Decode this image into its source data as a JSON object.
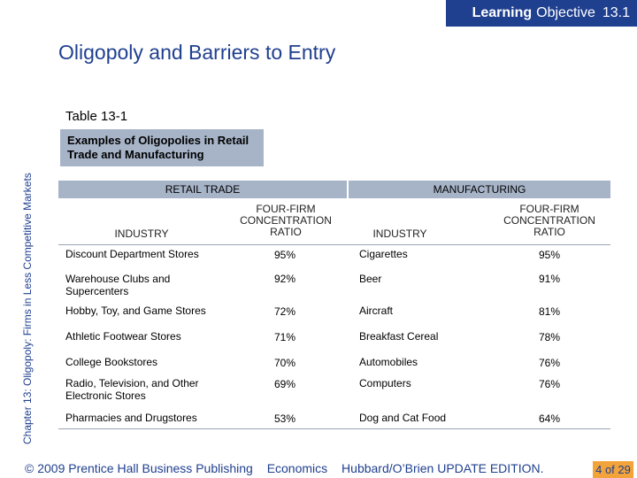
{
  "header": {
    "badge_bold": "Learning",
    "badge_rest": "Objective",
    "badge_num": "13.1"
  },
  "title": "Oligopoly and Barriers to Entry",
  "side_label": "Chapter 13: Oligopoly: Firms in Less Competitive Markets",
  "table": {
    "label": "Table 13-1",
    "caption": "Examples of Oligopolies in Retail Trade and Manufacturing",
    "sections": {
      "retail": "RETAIL TRADE",
      "manufacturing": "MANUFACTURING"
    },
    "col_headers": {
      "industry": "INDUSTRY",
      "ratio": "FOUR-FIRM CONCENTRATION RATIO"
    },
    "rows": [
      {
        "retail": "Discount Department Stores",
        "retail_ratio": "95%",
        "mfg": "Cigarettes",
        "mfg_ratio": "95%"
      },
      {
        "retail": "Warehouse Clubs and Supercenters",
        "retail_ratio": "92%",
        "mfg": "Beer",
        "mfg_ratio": "91%"
      },
      {
        "retail": "Hobby, Toy, and Game Stores",
        "retail_ratio": "72%",
        "mfg": "Aircraft",
        "mfg_ratio": "81%"
      },
      {
        "retail": "Athletic Footwear Stores",
        "retail_ratio": "71%",
        "mfg": "Breakfast Cereal",
        "mfg_ratio": "78%"
      },
      {
        "retail": "College Bookstores",
        "retail_ratio": "70%",
        "mfg": "Automobiles",
        "mfg_ratio": "76%"
      },
      {
        "retail": "Radio, Television, and Other Electronic Stores",
        "retail_ratio": "69%",
        "mfg": "Computers",
        "mfg_ratio": "76%"
      },
      {
        "retail": "Pharmacies and Drugstores",
        "retail_ratio": "53%",
        "mfg": "Dog and Cat Food",
        "mfg_ratio": "64%"
      }
    ]
  },
  "footer": {
    "copyright": "© 2009 Prentice Hall Business Publishing",
    "book": "Economics",
    "authors": "Hubbard/O’Brien UPDATE EDITION."
  },
  "page": "4 of 29",
  "colors": {
    "brand_blue": "#1f3f8f",
    "table_header": "#a7b4c8",
    "page_badge": "#f2a33a"
  }
}
